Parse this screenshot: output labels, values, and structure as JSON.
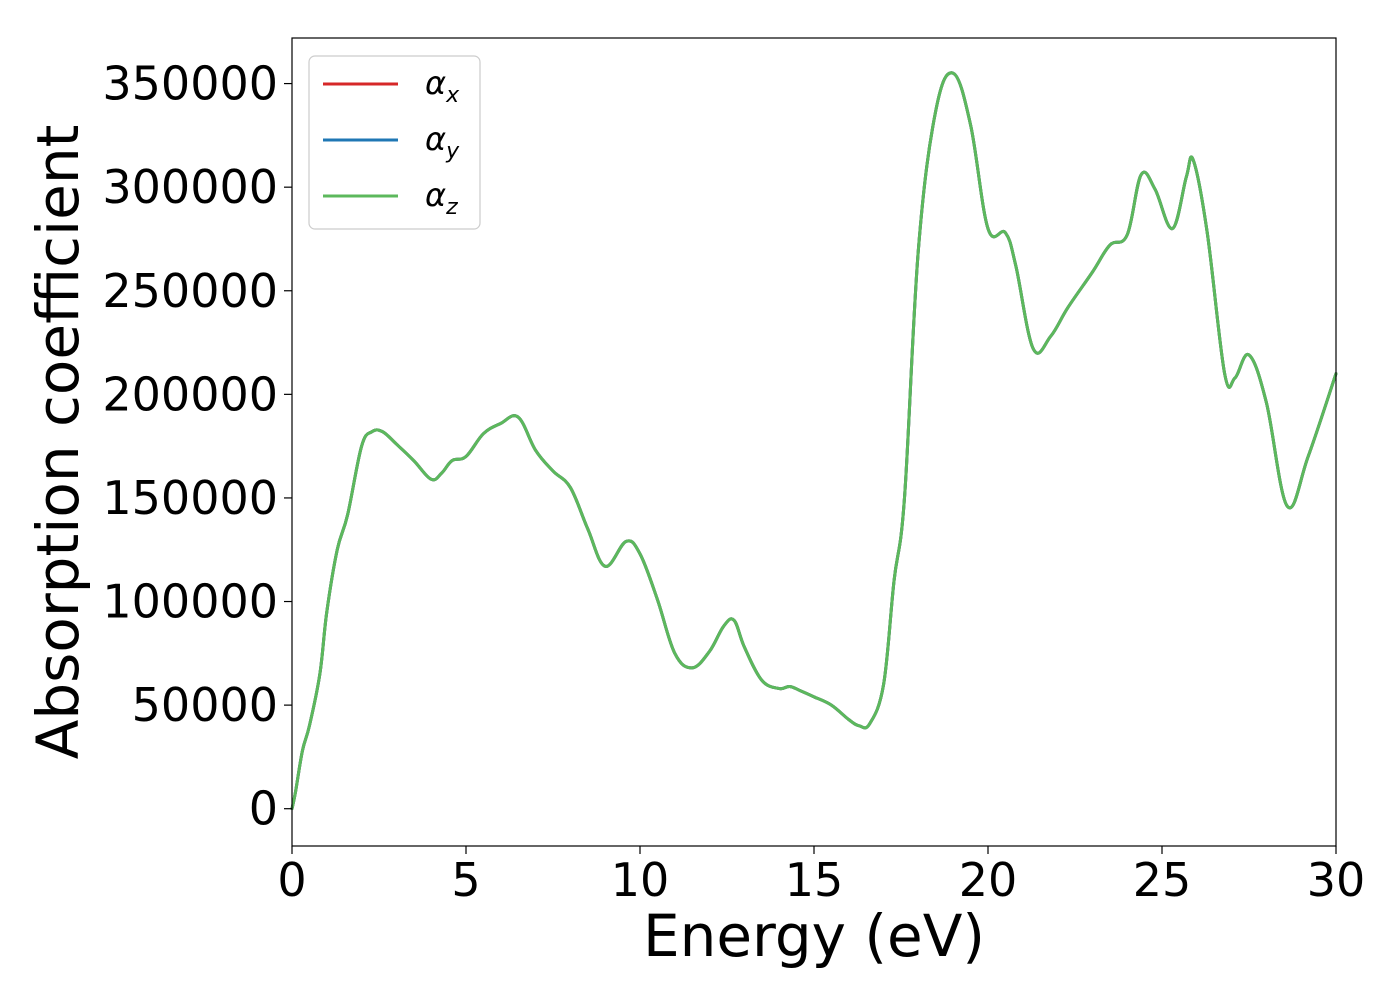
{
  "chart_data": {
    "type": "line",
    "xlabel": "Energy (eV)",
    "ylabel": "Absorption coefficient",
    "xlim": [
      0,
      30
    ],
    "ylim": [
      -18000,
      372000
    ],
    "xticks": [
      0,
      5,
      10,
      15,
      20,
      25,
      30
    ],
    "yticks": [
      0,
      50000,
      100000,
      150000,
      200000,
      250000,
      300000,
      350000
    ],
    "xtick_labels": [
      "0",
      "5",
      "10",
      "15",
      "20",
      "25",
      "30"
    ],
    "ytick_labels": [
      "0",
      "50000",
      "100000",
      "150000",
      "200000",
      "250000",
      "300000",
      "350000"
    ],
    "grid": false,
    "legend_position": "top-left",
    "x": [
      0,
      0.1,
      0.3,
      0.5,
      0.8,
      1.0,
      1.3,
      1.6,
      2.0,
      2.3,
      2.6,
      3.0,
      3.5,
      4.0,
      4.3,
      4.6,
      5.0,
      5.5,
      6.0,
      6.5,
      7.0,
      7.5,
      8.0,
      8.5,
      9.0,
      9.6,
      10.0,
      10.5,
      11.0,
      11.5,
      12.0,
      12.4,
      12.7,
      13.0,
      13.5,
      14.0,
      14.3,
      14.6,
      15.0,
      15.5,
      16.0,
      16.3,
      16.6,
      17.0,
      17.3,
      17.6,
      18.0,
      18.5,
      19.0,
      19.5,
      20.0,
      20.5,
      20.8,
      21.3,
      21.8,
      22.3,
      23.0,
      23.5,
      24.0,
      24.4,
      24.8,
      25.3,
      25.7,
      25.9,
      26.3,
      26.8,
      27.1,
      27.5,
      28.0,
      28.6,
      29.2,
      30.0
    ],
    "series": [
      {
        "name": "αx",
        "color": "#d62728",
        "values": [
          0,
          8000,
          28000,
          40000,
          65000,
          95000,
          125000,
          142000,
          175000,
          182000,
          182000,
          176000,
          168000,
          159000,
          162000,
          168000,
          170000,
          181000,
          186000,
          189000,
          173000,
          163000,
          155000,
          135000,
          117000,
          129000,
          123000,
          101000,
          75000,
          68000,
          76000,
          88000,
          91000,
          78000,
          62000,
          58000,
          59000,
          57000,
          54000,
          50000,
          43000,
          40000,
          41000,
          60000,
          110000,
          150000,
          270000,
          337000,
          355000,
          330000,
          280000,
          278000,
          262000,
          222000,
          228000,
          242000,
          259000,
          272000,
          277000,
          306000,
          299000,
          280000,
          305000,
          313000,
          278000,
          210000,
          208000,
          219000,
          196000,
          146000,
          170000,
          210000
        ]
      },
      {
        "name": "αy",
        "color": "#1f77b4",
        "values": [
          0,
          8000,
          28000,
          40000,
          65000,
          95000,
          125000,
          142000,
          175000,
          182000,
          182000,
          176000,
          168000,
          159000,
          162000,
          168000,
          170000,
          181000,
          186000,
          189000,
          173000,
          163000,
          155000,
          135000,
          117000,
          129000,
          123000,
          101000,
          75000,
          68000,
          76000,
          88000,
          91000,
          78000,
          62000,
          58000,
          59000,
          57000,
          54000,
          50000,
          43000,
          40000,
          41000,
          60000,
          110000,
          150000,
          270000,
          337000,
          355000,
          330000,
          280000,
          278000,
          262000,
          222000,
          228000,
          242000,
          259000,
          272000,
          277000,
          306000,
          299000,
          280000,
          305000,
          313000,
          278000,
          210000,
          208000,
          219000,
          196000,
          146000,
          170000,
          210000
        ]
      },
      {
        "name": "αz",
        "color": "#5cb85c",
        "values": [
          0,
          8000,
          28000,
          40000,
          65000,
          95000,
          125000,
          142000,
          175000,
          182000,
          182000,
          176000,
          168000,
          159000,
          162000,
          168000,
          170000,
          181000,
          186000,
          189000,
          173000,
          163000,
          155000,
          135000,
          117000,
          129000,
          123000,
          101000,
          75000,
          68000,
          76000,
          88000,
          91000,
          78000,
          62000,
          58000,
          59000,
          57000,
          54000,
          50000,
          43000,
          40000,
          41000,
          60000,
          110000,
          150000,
          270000,
          337000,
          355000,
          330000,
          280000,
          278000,
          262000,
          222000,
          228000,
          242000,
          259000,
          272000,
          277000,
          306000,
          299000,
          280000,
          305000,
          313000,
          278000,
          210000,
          208000,
          219000,
          196000,
          146000,
          170000,
          210000
        ]
      }
    ],
    "legend": [
      {
        "symbol": "α",
        "sub": "x",
        "color": "#d62728"
      },
      {
        "symbol": "α",
        "sub": "y",
        "color": "#1f77b4"
      },
      {
        "symbol": "α",
        "sub": "z",
        "color": "#5cb85c"
      }
    ]
  }
}
